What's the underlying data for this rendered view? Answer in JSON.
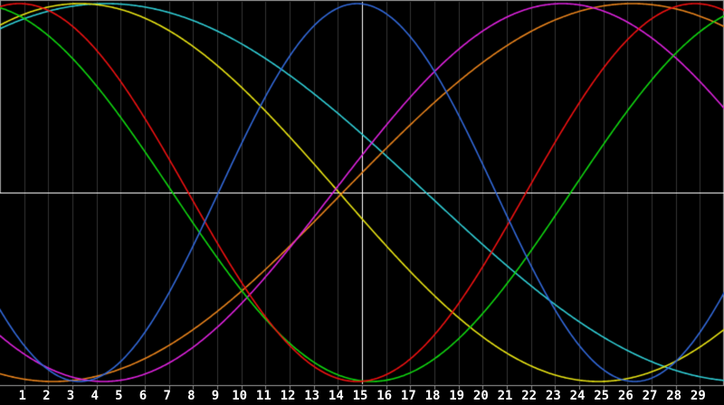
{
  "window": {
    "background": "#000000",
    "description_text": ""
  },
  "style": {
    "background": "#000000",
    "gridline_color": "#343434",
    "frame_color": "#9c9c9c",
    "tick_color": "#8c8c8c",
    "axis_cross_color": "#ffffff",
    "label_color": "#ffffff"
  },
  "chart_data": {
    "type": "line",
    "title": "",
    "xlabel": "",
    "ylabel": "",
    "legend": "none",
    "x_axis": {
      "unit": "day",
      "min": 0,
      "max": 30,
      "gridlines": true,
      "tick_labels": [
        "1",
        "2",
        "3",
        "4",
        "5",
        "6",
        "7",
        "8",
        "9",
        "10",
        "11",
        "12",
        "13",
        "14",
        "15",
        "16",
        "17",
        "18",
        "19",
        "20",
        "21",
        "22",
        "23",
        "24",
        "25",
        "26",
        "27",
        "28",
        "29"
      ]
    },
    "y_axis": {
      "min": -1,
      "max": 1,
      "zero_line": true,
      "tick_labels": []
    },
    "vertical_marker_day": 15,
    "series": [
      {
        "name": "cyan-cycle",
        "color": "#30ced6",
        "period_days": 53,
        "peak_day": 4.4,
        "amplitude": 1
      },
      {
        "name": "yellow-cycle",
        "color": "#e9e414",
        "period_days": 43,
        "peak_day": 3.3,
        "amplitude": 1
      },
      {
        "name": "orange-cycle",
        "color": "#e9831c",
        "period_days": 48,
        "peak_day": 26.2,
        "amplitude": 1
      },
      {
        "name": "magenta-cycle",
        "color": "#dd22dd",
        "period_days": 38,
        "peak_day": 23.3,
        "amplitude": 1
      },
      {
        "name": "green-cycle",
        "color": "#10d610",
        "period_days": 33,
        "peak_day": -1.1,
        "amplitude": 1
      },
      {
        "name": "red-cycle",
        "color": "#ee1111",
        "period_days": 28,
        "peak_day": 0.8,
        "amplitude": 1
      },
      {
        "name": "blue-cycle",
        "color": "#3268d8",
        "period_days": 23,
        "peak_day": 14.8,
        "amplitude": 1
      }
    ]
  }
}
